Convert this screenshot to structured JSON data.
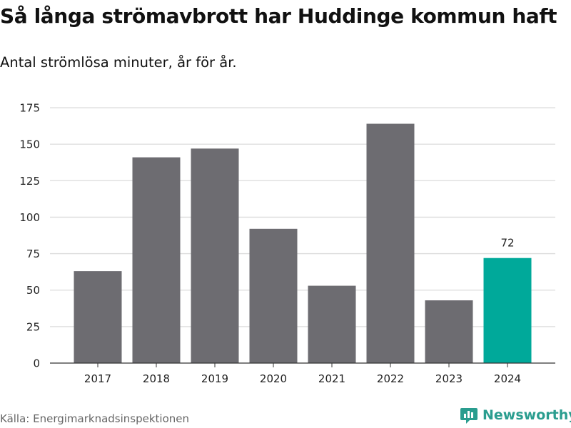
{
  "header": {
    "title": "Så långa strömavbrott har Huddinge kommun haft",
    "subtitle": "Antal strömlösa minuter, år för år."
  },
  "footer": {
    "source": "Källa: Energimarknadsinspektionen",
    "brand": "Newsworthy",
    "brand_icon": "newsworthy-logo-icon"
  },
  "colors": {
    "bar_default": "#6d6c71",
    "bar_highlight": "#00a99a",
    "grid": "#dcdcdc",
    "axis": "#333333",
    "brand": "#2a9d8f"
  },
  "chart_data": {
    "type": "bar",
    "title": "Så långa strömavbrott har Huddinge kommun haft",
    "subtitle": "Antal strömlösa minuter, år för år.",
    "xlabel": "",
    "ylabel": "",
    "categories": [
      "2017",
      "2018",
      "2019",
      "2020",
      "2021",
      "2022",
      "2023",
      "2024"
    ],
    "values": [
      63,
      141,
      147,
      92,
      53,
      164,
      43,
      72
    ],
    "highlight_index": 7,
    "data_labels": [
      {
        "category": "2024",
        "text": "72"
      }
    ],
    "ylim": [
      0,
      175
    ],
    "yticks": [
      0,
      25,
      50,
      75,
      100,
      125,
      150,
      175
    ],
    "grid": true,
    "legend": "none"
  }
}
